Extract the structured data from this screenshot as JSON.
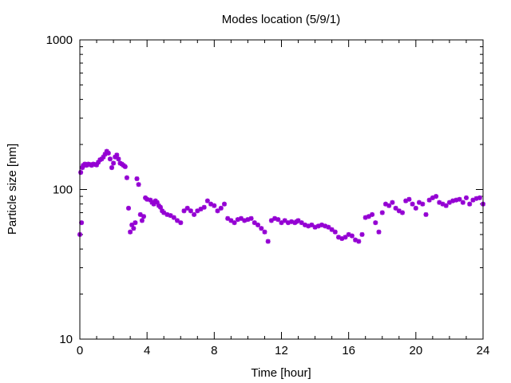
{
  "chart_data": {
    "type": "scatter",
    "title": "Modes location (5/9/1)",
    "xlabel": "Time [hour]",
    "ylabel": "Particle size [nm]",
    "xlim": [
      0,
      24
    ],
    "ylim": [
      10,
      1000
    ],
    "y_scale": "log",
    "grid": false,
    "marker_color": "#9400d3",
    "x_ticks": [
      {
        "value": 0,
        "label": "0"
      },
      {
        "value": 4,
        "label": "4"
      },
      {
        "value": 8,
        "label": "8"
      },
      {
        "value": 12,
        "label": "12"
      },
      {
        "value": 16,
        "label": "16"
      },
      {
        "value": 20,
        "label": "20"
      },
      {
        "value": 24,
        "label": "24"
      }
    ],
    "y_ticks": [
      {
        "value": 10,
        "label": "10"
      },
      {
        "value": 100,
        "label": "100"
      },
      {
        "value": 1000,
        "label": "1000"
      }
    ],
    "series": [
      {
        "x": [
          0.0,
          0.05,
          0.1,
          0.15,
          0.2,
          0.3,
          0.4,
          0.5,
          0.6,
          0.7,
          0.8,
          0.9,
          1.0,
          1.1,
          1.2,
          1.3,
          1.4,
          1.5,
          1.6,
          1.7,
          1.8,
          1.9,
          2.0,
          2.1,
          2.2,
          2.3,
          2.4,
          2.5,
          2.6,
          2.7,
          2.8,
          2.9,
          3.0,
          3.1,
          3.2,
          3.3,
          3.4,
          3.5,
          3.6,
          3.7,
          3.8,
          3.9,
          4.0,
          4.2,
          4.3,
          4.4,
          4.5,
          4.6,
          4.7,
          4.8,
          4.9,
          5.0,
          5.2,
          5.4,
          5.6,
          5.8,
          6.0,
          6.2,
          6.4,
          6.6,
          6.8,
          7.0,
          7.2,
          7.4,
          7.6,
          7.8,
          8.0,
          8.2,
          8.4,
          8.6,
          8.8,
          9.0,
          9.2,
          9.4,
          9.6,
          9.8,
          10.0,
          10.2,
          10.4,
          10.6,
          10.8,
          11.0,
          11.2,
          11.4,
          11.6,
          11.8,
          12.0,
          12.2,
          12.4,
          12.6,
          12.8,
          12.9,
          13.0,
          13.2,
          13.4,
          13.6,
          13.8,
          14.0,
          14.2,
          14.4,
          14.6,
          14.8,
          15.0,
          15.2,
          15.4,
          15.6,
          15.8,
          16.0,
          16.2,
          16.4,
          16.6,
          16.8,
          17.0,
          17.2,
          17.4,
          17.6,
          17.8,
          18.0,
          18.2,
          18.4,
          18.6,
          18.8,
          19.0,
          19.2,
          19.4,
          19.6,
          19.8,
          20.0,
          20.2,
          20.4,
          20.6,
          20.8,
          21.0,
          21.2,
          21.4,
          21.6,
          21.8,
          22.0,
          22.2,
          22.4,
          22.6,
          22.8,
          23.0,
          23.2,
          23.4,
          23.6,
          23.8,
          24.0
        ],
        "y": [
          50,
          130,
          60,
          140,
          145,
          148,
          145,
          148,
          147,
          145,
          148,
          147,
          146,
          152,
          158,
          160,
          165,
          172,
          180,
          175,
          160,
          140,
          150,
          165,
          170,
          160,
          150,
          148,
          145,
          142,
          120,
          75,
          52,
          58,
          55,
          60,
          118,
          108,
          68,
          62,
          66,
          88,
          86,
          85,
          82,
          80,
          84,
          82,
          78,
          76,
          72,
          70,
          68,
          67,
          65,
          62,
          60,
          72,
          75,
          72,
          68,
          72,
          74,
          76,
          84,
          80,
          78,
          72,
          75,
          80,
          64,
          62,
          60,
          63,
          64,
          62,
          63,
          64,
          60,
          58,
          55,
          52,
          45,
          62,
          64,
          63,
          60,
          62,
          60,
          61,
          60,
          61,
          62,
          60,
          58,
          57,
          58,
          56,
          57,
          58,
          57,
          56,
          54,
          52,
          48,
          47,
          48,
          50,
          49,
          46,
          45,
          50,
          65,
          66,
          68,
          60,
          52,
          70,
          80,
          78,
          82,
          75,
          72,
          70,
          84,
          86,
          80,
          75,
          82,
          80,
          68,
          85,
          88,
          90,
          82,
          80,
          78,
          82,
          84,
          85,
          86,
          82,
          88,
          80,
          85,
          87,
          88,
          80
        ]
      }
    ]
  }
}
